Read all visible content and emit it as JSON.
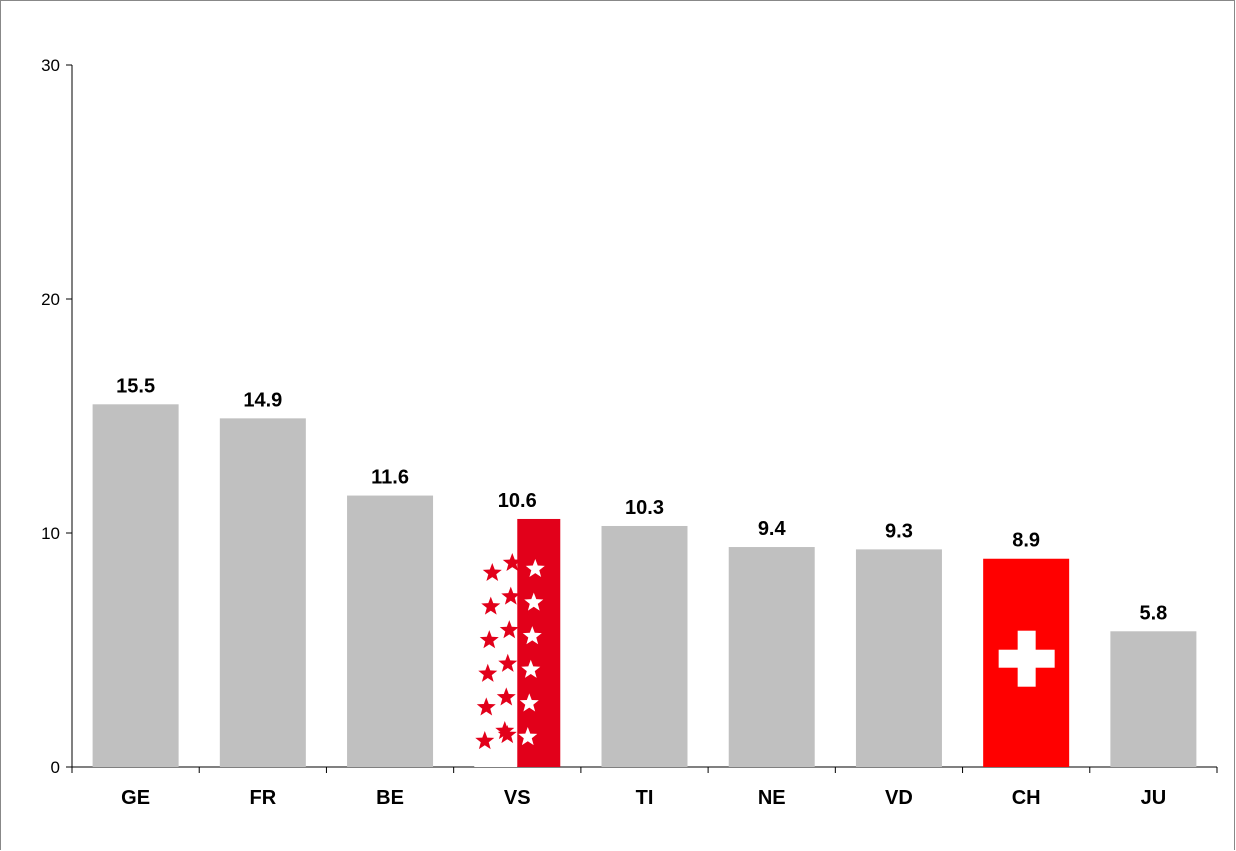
{
  "chart_data": {
    "type": "bar",
    "categories": [
      "GE",
      "FR",
      "BE",
      "VS",
      "TI",
      "NE",
      "VD",
      "CH",
      "JU"
    ],
    "values": [
      15.5,
      14.9,
      11.6,
      10.6,
      10.3,
      9.4,
      9.3,
      8.9,
      5.8
    ],
    "data_labels": [
      "15.5",
      "14.9",
      "11.6",
      "10.6",
      "10.3",
      "9.4",
      "9.3",
      "8.9",
      "5.8"
    ],
    "ylim": [
      0,
      30
    ],
    "yticks": [
      0,
      10,
      20,
      30
    ],
    "ytick_labels": [
      "0",
      "10",
      "20",
      "30"
    ],
    "title": "",
    "xlabel": "",
    "ylabel": "",
    "grid": false,
    "colors": {
      "default_bar": "#c0c0c0",
      "vs_red": "#e2001a",
      "ch_red": "#ff0000",
      "emblem_white": "#ffffff"
    },
    "bar_styles": [
      "plain",
      "plain",
      "plain",
      "valais-flag",
      "plain",
      "plain",
      "plain",
      "swiss-flag",
      "plain"
    ]
  }
}
